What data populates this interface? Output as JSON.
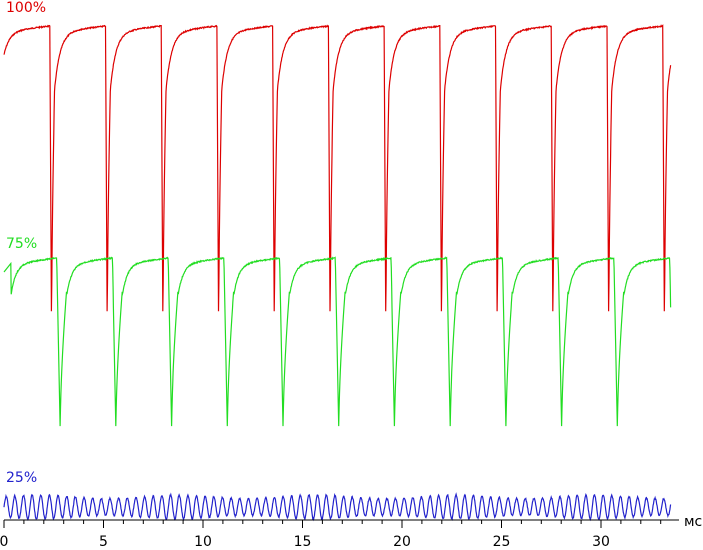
{
  "chart_data": {
    "type": "line",
    "title": "",
    "xlabel": "мс",
    "ylabel": "",
    "xlim": [
      0,
      35
    ],
    "x_ticks": [
      0,
      5,
      10,
      15,
      20,
      25,
      30
    ],
    "x_tick_labels": [
      "0",
      "5",
      "10",
      "15",
      "20",
      "25",
      "30"
    ],
    "x_minor_step": 1,
    "grid": false,
    "legend": "none",
    "series": [
      {
        "name": "100%",
        "color": "#dd0000",
        "waveform": "square-with-dips",
        "period_ms": 2.8,
        "first_dip_ms": 2.3,
        "dip_width_ms": 0.25,
        "count_dips": 12,
        "level_high": 1.0,
        "level_low": 0.0,
        "x_range": [
          0,
          33.5
        ]
      },
      {
        "name": "75%",
        "color": "#22dd22",
        "waveform": "square-with-dips",
        "period_ms": 2.8,
        "first_dip_ms": 2.65,
        "dip_width_ms": 0.5,
        "count_dips": 12,
        "level_high": 0.75,
        "level_low": 0.0,
        "x_range": [
          0,
          33.5
        ]
      },
      {
        "name": "25%",
        "color": "#2222cc",
        "waveform": "oscillation",
        "frequency_khz": 2.3,
        "mean_level": 0.06,
        "amplitude": 0.05,
        "x_range": [
          0,
          33.5
        ]
      }
    ]
  }
}
